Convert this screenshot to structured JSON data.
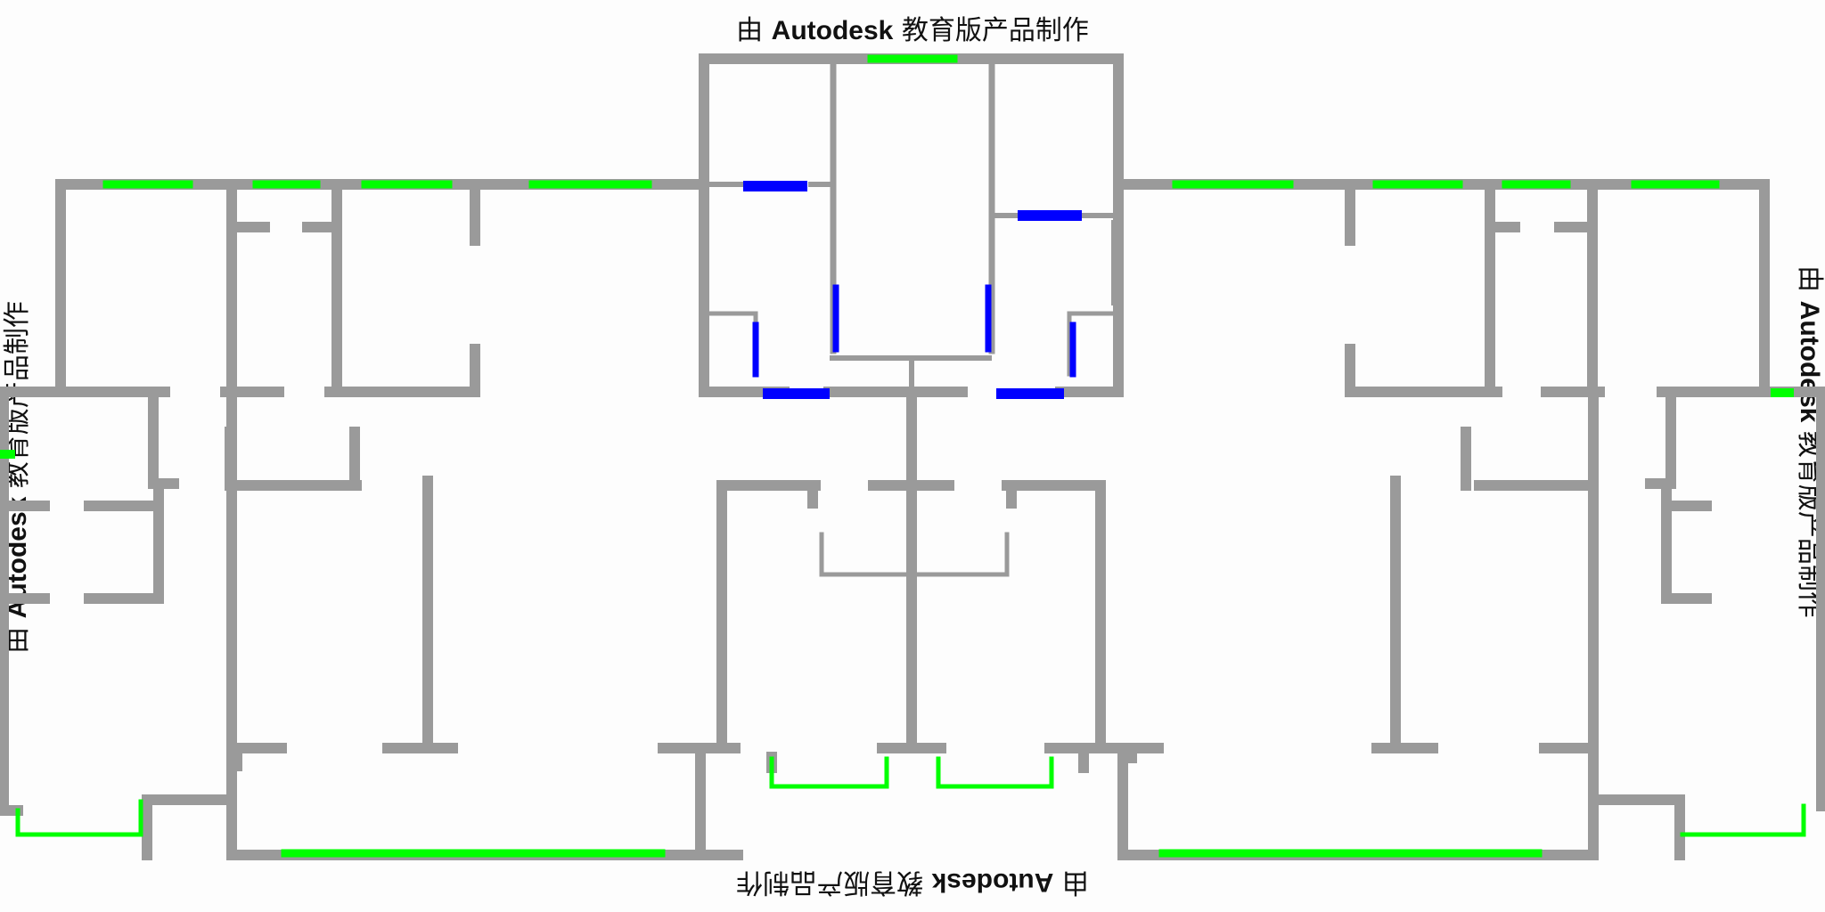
{
  "watermark": {
    "prefix": "由 ",
    "brand": "Autodesk",
    "suffix": " 教育版产品制作"
  },
  "colors": {
    "wall": "#9a9a9a",
    "window": "#00ff00",
    "door": "#0000ff",
    "background": "#fdfdfd"
  }
}
